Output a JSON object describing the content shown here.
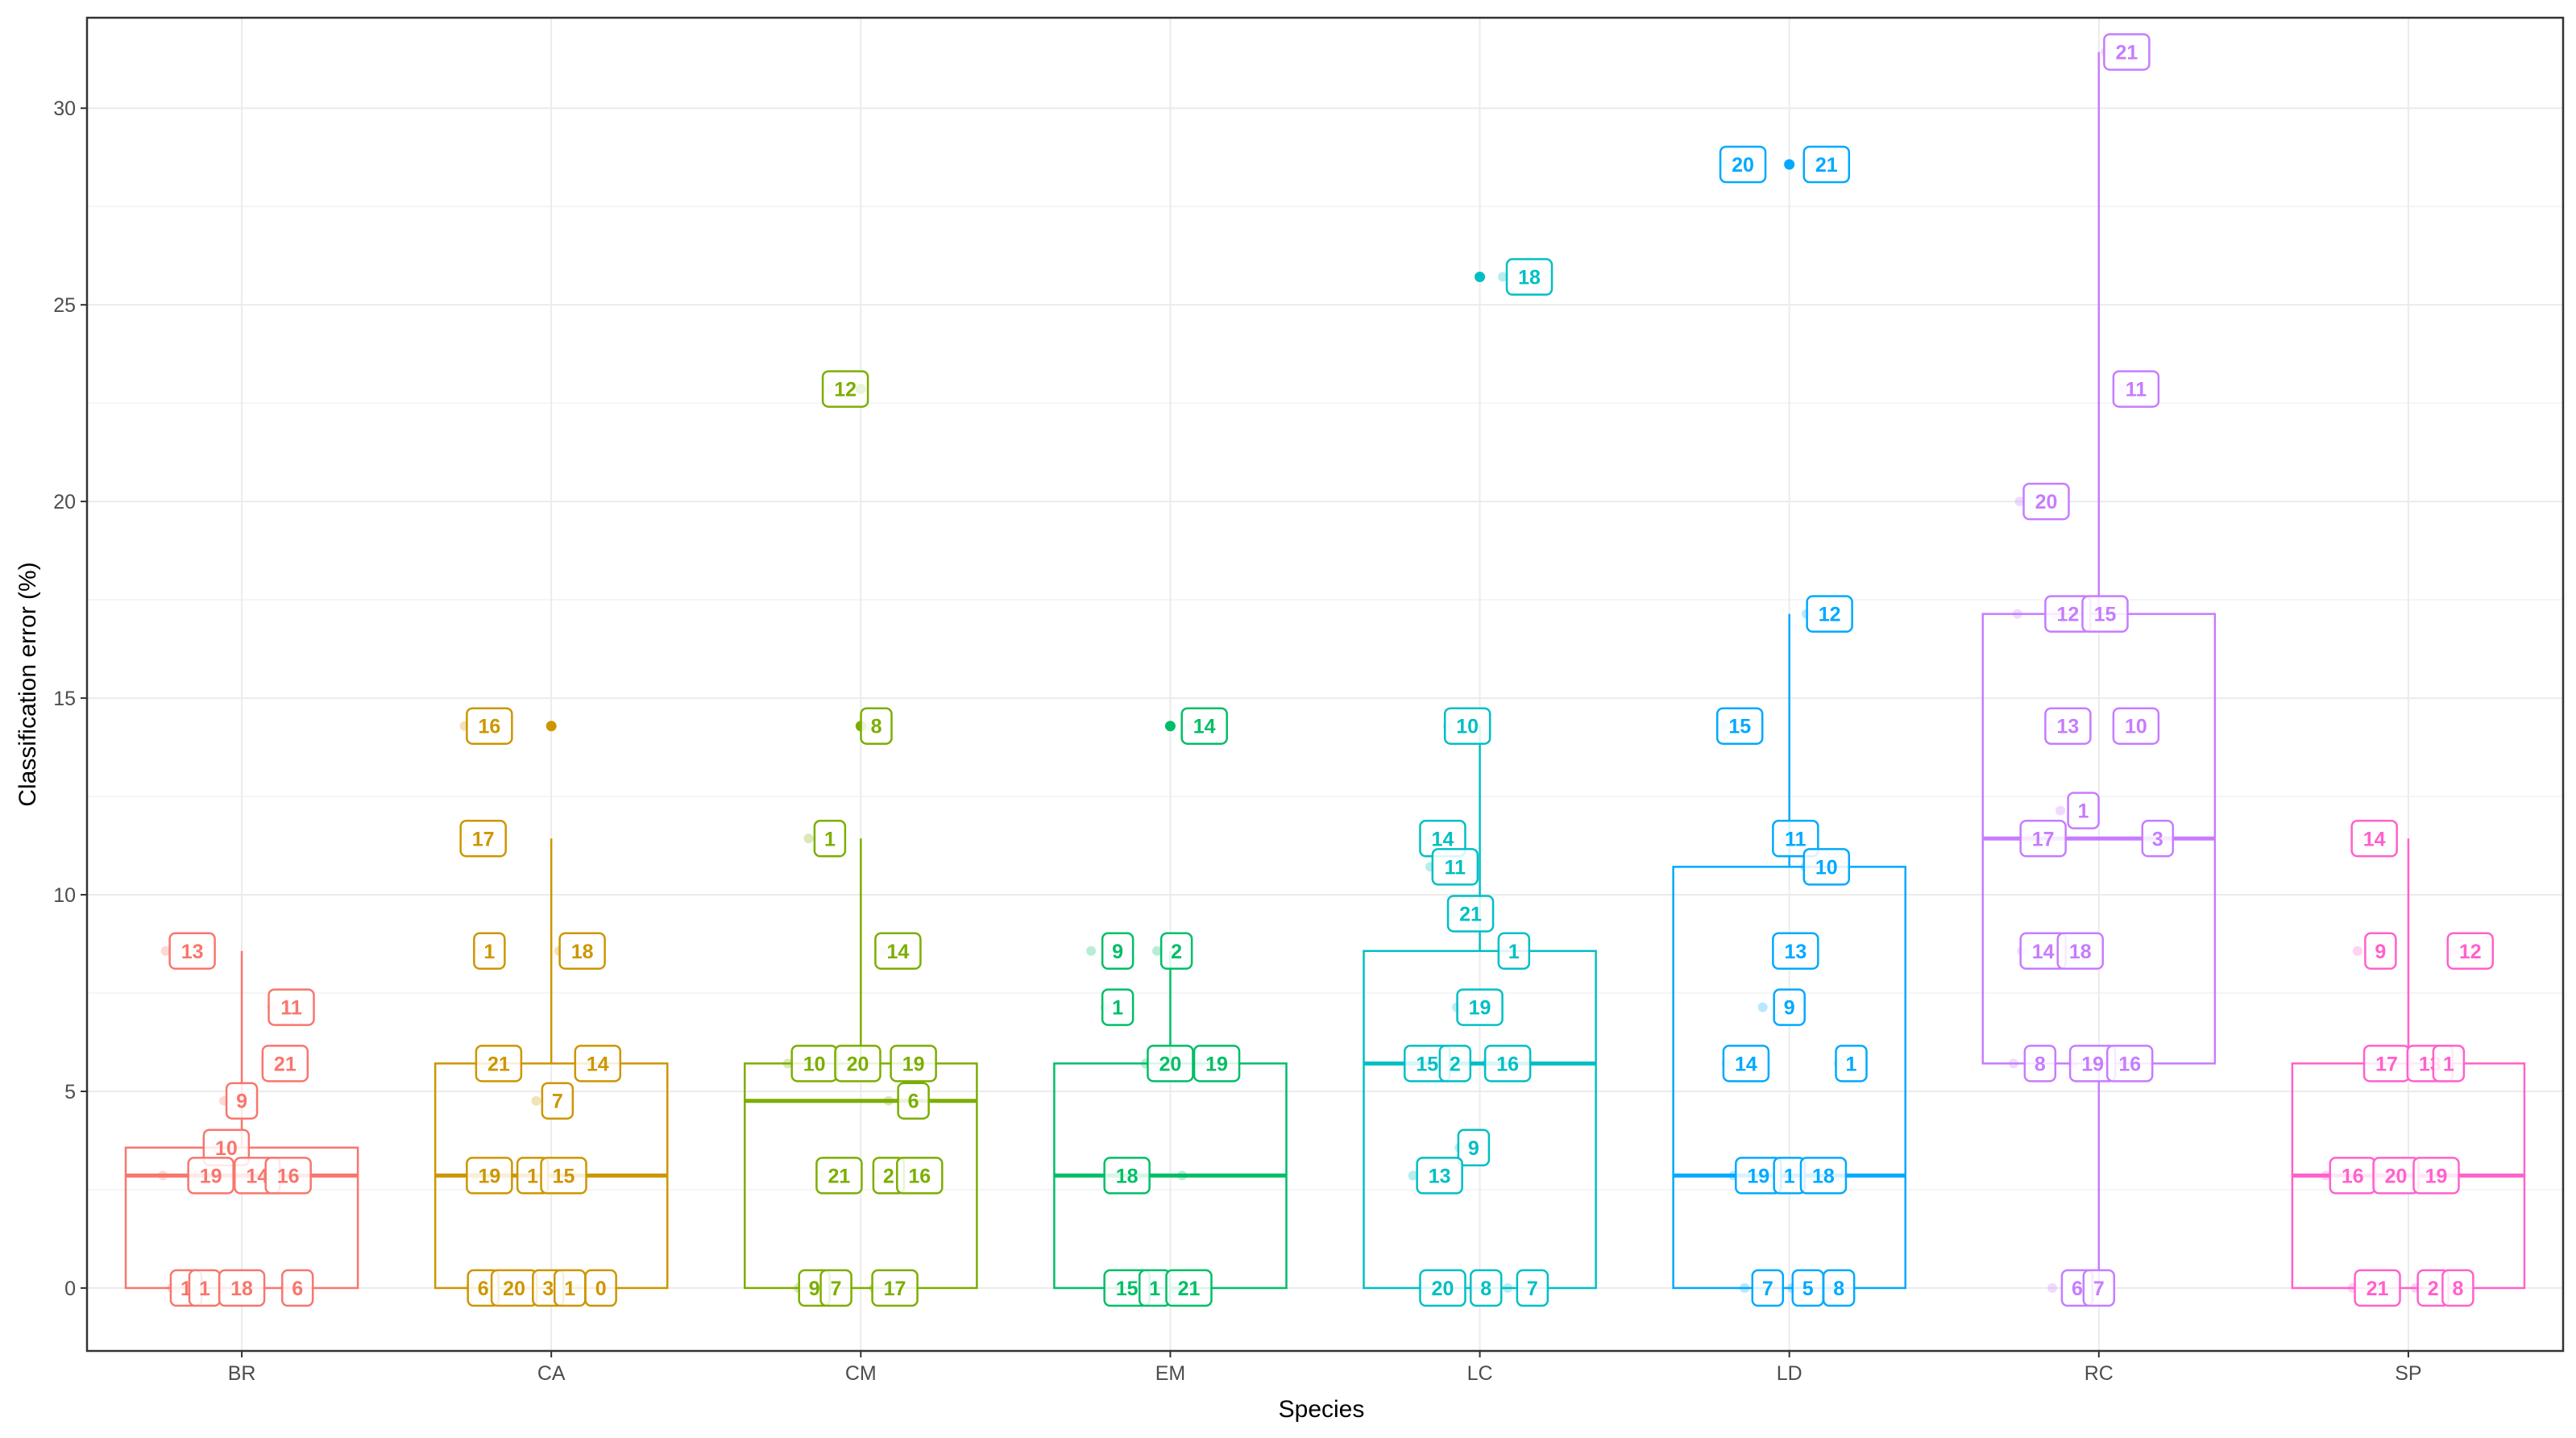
{
  "chart_data": {
    "type": "boxplot",
    "title": "",
    "xlabel": "Species",
    "ylabel": "Classification error (%)",
    "ylim": [
      -1.6,
      32.3
    ],
    "yticks": [
      0,
      5,
      10,
      15,
      20,
      25,
      30
    ],
    "categories": [
      "BR",
      "CA",
      "CM",
      "EM",
      "LC",
      "LD",
      "RC",
      "SP"
    ],
    "colors": {
      "BR": "#F8766D",
      "CA": "#CD9600",
      "CM": "#7CAE00",
      "EM": "#00BE67",
      "LC": "#00BFC4",
      "LD": "#00A9FF",
      "RC": "#C77CFF",
      "SP": "#FF61CC"
    },
    "boxes": [
      {
        "species": "BR",
        "min": 0,
        "q1": 0,
        "median": 2.86,
        "q3": 3.57,
        "max": 8.57
      },
      {
        "species": "CA",
        "min": 0,
        "q1": 0,
        "median": 2.86,
        "q3": 5.71,
        "max": 11.43
      },
      {
        "species": "CM",
        "min": 0,
        "q1": 0,
        "median": 4.76,
        "q3": 5.71,
        "max": 11.43
      },
      {
        "species": "EM",
        "min": 0,
        "q1": 0,
        "median": 2.86,
        "q3": 5.71,
        "max": 8.57
      },
      {
        "species": "LC",
        "min": 0,
        "q1": 0,
        "median": 5.71,
        "q3": 8.57,
        "max": 14.29
      },
      {
        "species": "LD",
        "min": 0,
        "q1": 0,
        "median": 2.86,
        "q3": 10.71,
        "max": 17.14
      },
      {
        "species": "RC",
        "min": 0,
        "q1": 5.71,
        "median": 11.43,
        "q3": 17.14,
        "max": 31.43
      },
      {
        "species": "SP",
        "min": 0,
        "q1": 0,
        "median": 2.86,
        "q3": 5.71,
        "max": 11.43
      }
    ],
    "outliers": [
      {
        "species": "CA",
        "y": 14.29
      },
      {
        "species": "CM",
        "y": 22.86
      },
      {
        "species": "CM",
        "y": 14.29
      },
      {
        "species": "EM",
        "y": 14.29
      },
      {
        "species": "LC",
        "y": 25.71
      },
      {
        "species": "LD",
        "y": 28.57
      }
    ],
    "points": [
      {
        "species": "BR",
        "y": 8.57,
        "label": "13",
        "dx": -0.16
      },
      {
        "species": "BR",
        "y": 7.14,
        "label": "11",
        "dx": 0.16
      },
      {
        "species": "BR",
        "y": 5.71,
        "label": "21",
        "dx": 0.14
      },
      {
        "species": "BR",
        "y": 5.71,
        "label": "",
        "dx": 0.2
      },
      {
        "species": "BR",
        "y": 4.76,
        "label": "9",
        "dx": 0.0
      },
      {
        "species": "BR",
        "y": 3.57,
        "label": "10",
        "dx": -0.05
      },
      {
        "species": "BR",
        "y": 2.86,
        "label": "",
        "dx": -0.18
      },
      {
        "species": "BR",
        "y": 2.86,
        "label": "19",
        "dx": -0.1
      },
      {
        "species": "BR",
        "y": 2.86,
        "label": "14",
        "dx": 0.05
      },
      {
        "species": "BR",
        "y": 2.86,
        "label": "16",
        "dx": 0.15
      },
      {
        "species": "BR",
        "y": 0,
        "label": "1",
        "dx": -0.18
      },
      {
        "species": "BR",
        "y": 0,
        "label": "1",
        "dx": -0.12
      },
      {
        "species": "BR",
        "y": 0,
        "label": "18",
        "dx": 0.0
      },
      {
        "species": "BR",
        "y": 0,
        "label": "6",
        "dx": 0.18
      },
      {
        "species": "CA",
        "y": 14.29,
        "label": "16",
        "dx": -0.2
      },
      {
        "species": "CA",
        "y": 11.43,
        "label": "17",
        "dx": -0.22
      },
      {
        "species": "CA",
        "y": 8.57,
        "label": "1",
        "dx": -0.2
      },
      {
        "species": "CA",
        "y": 8.57,
        "label": "18",
        "dx": 0.1
      },
      {
        "species": "CA",
        "y": 5.71,
        "label": "21",
        "dx": -0.17
      },
      {
        "species": "CA",
        "y": 5.71,
        "label": "14",
        "dx": 0.15
      },
      {
        "species": "CA",
        "y": 4.76,
        "label": "7",
        "dx": 0.02
      },
      {
        "species": "CA",
        "y": 2.86,
        "label": "19",
        "dx": -0.2
      },
      {
        "species": "CA",
        "y": 2.86,
        "label": "1",
        "dx": -0.06
      },
      {
        "species": "CA",
        "y": 2.86,
        "label": "15",
        "dx": 0.04
      },
      {
        "species": "CA",
        "y": 0,
        "label": "6",
        "dx": -0.22
      },
      {
        "species": "CA",
        "y": 0,
        "label": "20",
        "dx": -0.12
      },
      {
        "species": "CA",
        "y": 0,
        "label": "3",
        "dx": -0.01
      },
      {
        "species": "CA",
        "y": 0,
        "label": "1",
        "dx": 0.06
      },
      {
        "species": "CA",
        "y": 0,
        "label": "0",
        "dx": 0.16
      },
      {
        "species": "CM",
        "y": 22.86,
        "label": "12",
        "dx": -0.05
      },
      {
        "species": "CM",
        "y": 14.29,
        "label": "8",
        "dx": 0.05
      },
      {
        "species": "CM",
        "y": 11.43,
        "label": "1",
        "dx": -0.1
      },
      {
        "species": "CM",
        "y": 8.57,
        "label": "14",
        "dx": 0.12
      },
      {
        "species": "CM",
        "y": 5.71,
        "label": "10",
        "dx": -0.15
      },
      {
        "species": "CM",
        "y": 5.71,
        "label": "20",
        "dx": -0.01
      },
      {
        "species": "CM",
        "y": 5.71,
        "label": "19",
        "dx": 0.17
      },
      {
        "species": "CM",
        "y": 4.76,
        "label": "6",
        "dx": 0.17
      },
      {
        "species": "CM",
        "y": 2.86,
        "label": "21",
        "dx": -0.07
      },
      {
        "species": "CM",
        "y": 2.86,
        "label": "2",
        "dx": 0.09
      },
      {
        "species": "CM",
        "y": 2.86,
        "label": "16",
        "dx": 0.19
      },
      {
        "species": "CM",
        "y": 0,
        "label": "9",
        "dx": -0.15
      },
      {
        "species": "CM",
        "y": 0,
        "label": "7",
        "dx": -0.08
      },
      {
        "species": "CM",
        "y": 0,
        "label": "17",
        "dx": 0.11
      },
      {
        "species": "EM",
        "y": 14.29,
        "label": "14",
        "dx": 0.11
      },
      {
        "species": "EM",
        "y": 8.57,
        "label": "9",
        "dx": -0.17
      },
      {
        "species": "EM",
        "y": 8.57,
        "label": "2",
        "dx": 0.02
      },
      {
        "species": "EM",
        "y": 7.14,
        "label": "1",
        "dx": -0.17
      },
      {
        "species": "EM",
        "y": 5.71,
        "label": "20",
        "dx": 0.0
      },
      {
        "species": "EM",
        "y": 5.71,
        "label": "19",
        "dx": 0.15
      },
      {
        "species": "EM",
        "y": 2.86,
        "label": "18",
        "dx": -0.14
      },
      {
        "species": "EM",
        "y": 2.86,
        "label": "",
        "dx": -0.02
      },
      {
        "species": "EM",
        "y": 2.86,
        "label": "",
        "dx": 0.09
      },
      {
        "species": "EM",
        "y": 0,
        "label": "15",
        "dx": -0.14
      },
      {
        "species": "EM",
        "y": 0,
        "label": "1",
        "dx": -0.05
      },
      {
        "species": "EM",
        "y": 0,
        "label": "21",
        "dx": 0.06
      },
      {
        "species": "LC",
        "y": 25.71,
        "label": "18",
        "dx": 0.16
      },
      {
        "species": "LC",
        "y": 14.29,
        "label": "10",
        "dx": -0.04
      },
      {
        "species": "LC",
        "y": 11.43,
        "label": "14",
        "dx": -0.12
      },
      {
        "species": "LC",
        "y": 10.71,
        "label": "11",
        "dx": -0.08
      },
      {
        "species": "LC",
        "y": 9.52,
        "label": "21",
        "dx": -0.03
      },
      {
        "species": "LC",
        "y": 8.57,
        "label": "1",
        "dx": 0.11
      },
      {
        "species": "LC",
        "y": 7.14,
        "label": "19",
        "dx": 0.0
      },
      {
        "species": "LC",
        "y": 5.71,
        "label": "15",
        "dx": -0.17
      },
      {
        "species": "LC",
        "y": 5.71,
        "label": "2",
        "dx": -0.08
      },
      {
        "species": "LC",
        "y": 5.71,
        "label": "16",
        "dx": 0.09
      },
      {
        "species": "LC",
        "y": 3.57,
        "label": "9",
        "dx": -0.02
      },
      {
        "species": "LC",
        "y": 2.86,
        "label": "13",
        "dx": -0.13
      },
      {
        "species": "LC",
        "y": 0,
        "label": "20",
        "dx": -0.12
      },
      {
        "species": "LC",
        "y": 0,
        "label": "8",
        "dx": 0.02
      },
      {
        "species": "LC",
        "y": 0,
        "label": "7",
        "dx": 0.17
      },
      {
        "species": "LD",
        "y": 28.57,
        "label": "20",
        "dx": -0.15
      },
      {
        "species": "LD",
        "y": 28.57,
        "label": "21",
        "dx": 0.12
      },
      {
        "species": "LD",
        "y": 17.14,
        "label": "12",
        "dx": 0.13
      },
      {
        "species": "LD",
        "y": 14.29,
        "label": "15",
        "dx": -0.16
      },
      {
        "species": "LD",
        "y": 11.43,
        "label": "11",
        "dx": 0.02
      },
      {
        "species": "LD",
        "y": 10.71,
        "label": "10",
        "dx": 0.12
      },
      {
        "species": "LD",
        "y": 8.57,
        "label": "13",
        "dx": 0.02
      },
      {
        "species": "LD",
        "y": 7.14,
        "label": "9",
        "dx": 0.0
      },
      {
        "species": "LD",
        "y": 5.71,
        "label": "14",
        "dx": -0.14
      },
      {
        "species": "LD",
        "y": 5.71,
        "label": "1",
        "dx": 0.2
      },
      {
        "species": "LD",
        "y": 2.86,
        "label": "19",
        "dx": -0.1
      },
      {
        "species": "LD",
        "y": 2.86,
        "label": "1",
        "dx": 0.0
      },
      {
        "species": "LD",
        "y": 2.86,
        "label": "18",
        "dx": 0.11
      },
      {
        "species": "LD",
        "y": 0,
        "label": "7",
        "dx": -0.07
      },
      {
        "species": "LD",
        "y": 0,
        "label": "5",
        "dx": 0.06
      },
      {
        "species": "LD",
        "y": 0,
        "label": "8",
        "dx": 0.16
      },
      {
        "species": "RC",
        "y": 31.43,
        "label": "21",
        "dx": 0.09
      },
      {
        "species": "RC",
        "y": 22.86,
        "label": "11",
        "dx": 0.12
      },
      {
        "species": "RC",
        "y": 20.0,
        "label": "20",
        "dx": -0.17
      },
      {
        "species": "RC",
        "y": 17.14,
        "label": "",
        "dx": -0.2
      },
      {
        "species": "RC",
        "y": 17.14,
        "label": "12",
        "dx": -0.1
      },
      {
        "species": "RC",
        "y": 17.14,
        "label": "15",
        "dx": 0.02
      },
      {
        "species": "RC",
        "y": 14.29,
        "label": "13",
        "dx": -0.1
      },
      {
        "species": "RC",
        "y": 14.29,
        "label": "10",
        "dx": 0.12
      },
      {
        "species": "RC",
        "y": 12.14,
        "label": "1",
        "dx": -0.05
      },
      {
        "species": "RC",
        "y": 11.43,
        "label": "17",
        "dx": -0.18
      },
      {
        "species": "RC",
        "y": 11.43,
        "label": "3",
        "dx": 0.19
      },
      {
        "species": "RC",
        "y": 8.57,
        "label": "14",
        "dx": -0.18
      },
      {
        "species": "RC",
        "y": 8.57,
        "label": "18",
        "dx": -0.06
      },
      {
        "species": "RC",
        "y": 5.71,
        "label": "8",
        "dx": -0.19
      },
      {
        "species": "RC",
        "y": 5.71,
        "label": "19",
        "dx": -0.02
      },
      {
        "species": "RC",
        "y": 5.71,
        "label": "16",
        "dx": 0.1
      },
      {
        "species": "RC",
        "y": 0,
        "label": "6",
        "dx": -0.07
      },
      {
        "species": "RC",
        "y": 0,
        "label": "7",
        "dx": 0.0
      },
      {
        "species": "SP",
        "y": 11.43,
        "label": "14",
        "dx": -0.11
      },
      {
        "species": "SP",
        "y": 8.57,
        "label": "9",
        "dx": -0.09
      },
      {
        "species": "SP",
        "y": 8.57,
        "label": "12",
        "dx": 0.2
      },
      {
        "species": "SP",
        "y": 5.71,
        "label": "17",
        "dx": -0.07
      },
      {
        "species": "SP",
        "y": 5.71,
        "label": "13",
        "dx": 0.07
      },
      {
        "species": "SP",
        "y": 5.71,
        "label": "1",
        "dx": 0.13
      },
      {
        "species": "SP",
        "y": 2.86,
        "label": "16",
        "dx": -0.18
      },
      {
        "species": "SP",
        "y": 2.86,
        "label": "20",
        "dx": -0.04
      },
      {
        "species": "SP",
        "y": 2.86,
        "label": "19",
        "dx": 0.09
      },
      {
        "species": "SP",
        "y": 0,
        "label": "21",
        "dx": -0.1
      },
      {
        "species": "SP",
        "y": 0,
        "label": "2",
        "dx": 0.08
      },
      {
        "species": "SP",
        "y": 0,
        "label": "8",
        "dx": 0.16
      }
    ]
  }
}
